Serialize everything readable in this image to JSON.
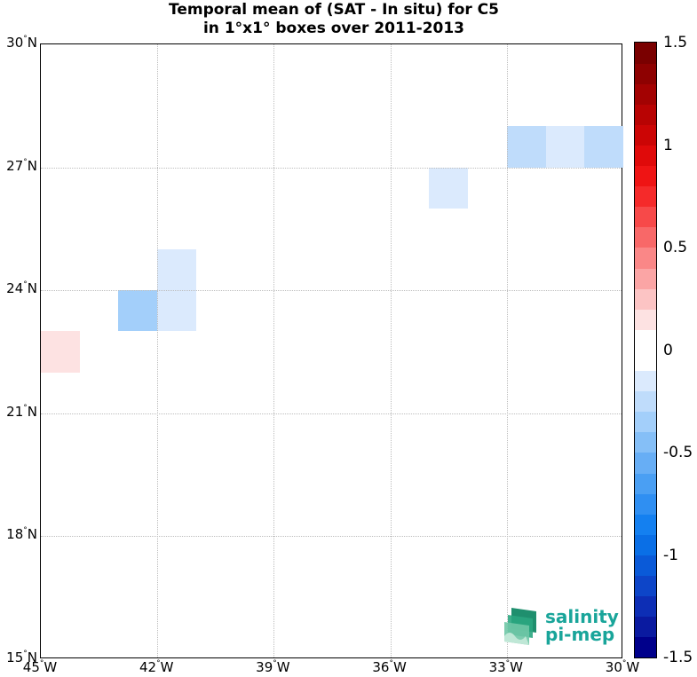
{
  "title": {
    "line1": "Temporal mean of (SAT - In situ) for C5",
    "line2": "in 1°x1° boxes over 2011-2013"
  },
  "map": {
    "lon_range": [
      -45,
      -30
    ],
    "lat_range": [
      15,
      30
    ],
    "x_ticks": [
      {
        "value": -45,
        "deg": "45",
        "hemi": "W"
      },
      {
        "value": -42,
        "deg": "42",
        "hemi": "W"
      },
      {
        "value": -39,
        "deg": "39",
        "hemi": "W"
      },
      {
        "value": -36,
        "deg": "36",
        "hemi": "W"
      },
      {
        "value": -33,
        "deg": "33",
        "hemi": "W"
      },
      {
        "value": -30,
        "deg": "30",
        "hemi": "W"
      }
    ],
    "y_ticks": [
      {
        "value": 30,
        "deg": "30",
        "hemi": "N"
      },
      {
        "value": 27,
        "deg": "27",
        "hemi": "N"
      },
      {
        "value": 24,
        "deg": "24",
        "hemi": "N"
      },
      {
        "value": 21,
        "deg": "21",
        "hemi": "N"
      },
      {
        "value": 18,
        "deg": "18",
        "hemi": "N"
      },
      {
        "value": 15,
        "deg": "15",
        "hemi": "N"
      }
    ],
    "grid": true,
    "cells": [
      {
        "lon_min": -45,
        "lat_min": 22,
        "value": 0.15
      },
      {
        "lon_min": -43,
        "lat_min": 23,
        "value": -0.3
      },
      {
        "lon_min": -42,
        "lat_min": 23,
        "value": -0.15
      },
      {
        "lon_min": -42,
        "lat_min": 24,
        "value": -0.15
      },
      {
        "lon_min": -35,
        "lat_min": 26,
        "value": -0.15
      },
      {
        "lon_min": -33,
        "lat_min": 27,
        "value": -0.25
      },
      {
        "lon_min": -32,
        "lat_min": 27,
        "value": -0.1
      },
      {
        "lon_min": -31,
        "lat_min": 27,
        "value": -0.25
      }
    ]
  },
  "colorbar": {
    "min": -1.5,
    "max": 1.5,
    "ticks": [
      {
        "value": 1.5,
        "label": "1.5"
      },
      {
        "value": 1,
        "label": "1"
      },
      {
        "value": 0.5,
        "label": "0.5"
      },
      {
        "value": 0,
        "label": "0"
      },
      {
        "value": -0.5,
        "label": "-0.5"
      },
      {
        "value": -1,
        "label": "-1"
      },
      {
        "value": -1.5,
        "label": "-1.5"
      }
    ],
    "colors": [
      "#00008b",
      "#0a1aa0",
      "#0d2eb5",
      "#0d45c8",
      "#0a5ad8",
      "#0a6fe6",
      "#1480f0",
      "#2f8ff2",
      "#4a9ff3",
      "#67aef5",
      "#85bff7",
      "#a3cffa",
      "#bfdcfb",
      "#dbeafd",
      "#ffffff",
      "#ffffff",
      "#fde2e2",
      "#fcc4c4",
      "#fba5a5",
      "#fa8787",
      "#f86868",
      "#f74949",
      "#f52a2a",
      "#ef1414",
      "#e00a0a",
      "#cc0505",
      "#b80303",
      "#a30202",
      "#8e0101",
      "#7a0000"
    ]
  },
  "logo": {
    "line1": "salinity",
    "line2": "pi-mep"
  }
}
